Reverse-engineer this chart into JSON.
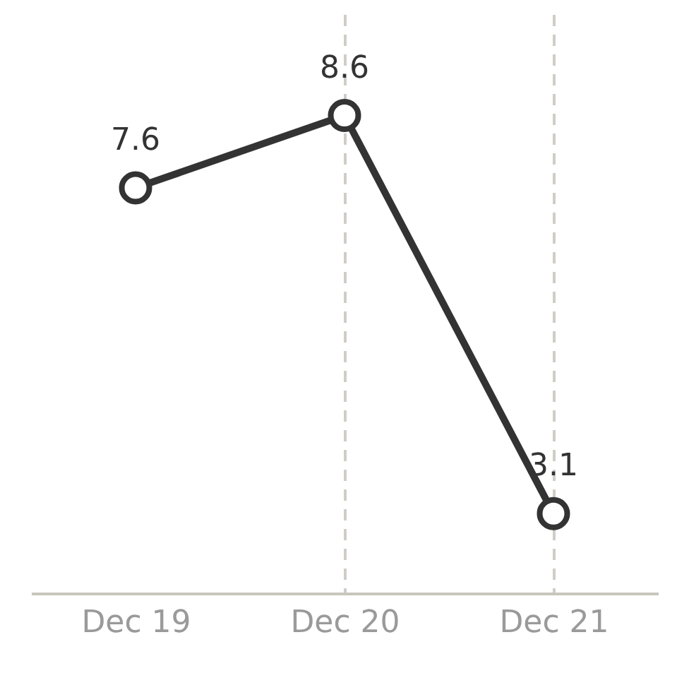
{
  "chart_data": {
    "type": "line",
    "categories": [
      "Dec 19",
      "Dec 20",
      "Dec 21"
    ],
    "values": [
      7.6,
      8.6,
      3.1
    ],
    "color": "#333333",
    "marker": "circle",
    "line_style": "solid",
    "grid": "x",
    "data_labels": true
  }
}
